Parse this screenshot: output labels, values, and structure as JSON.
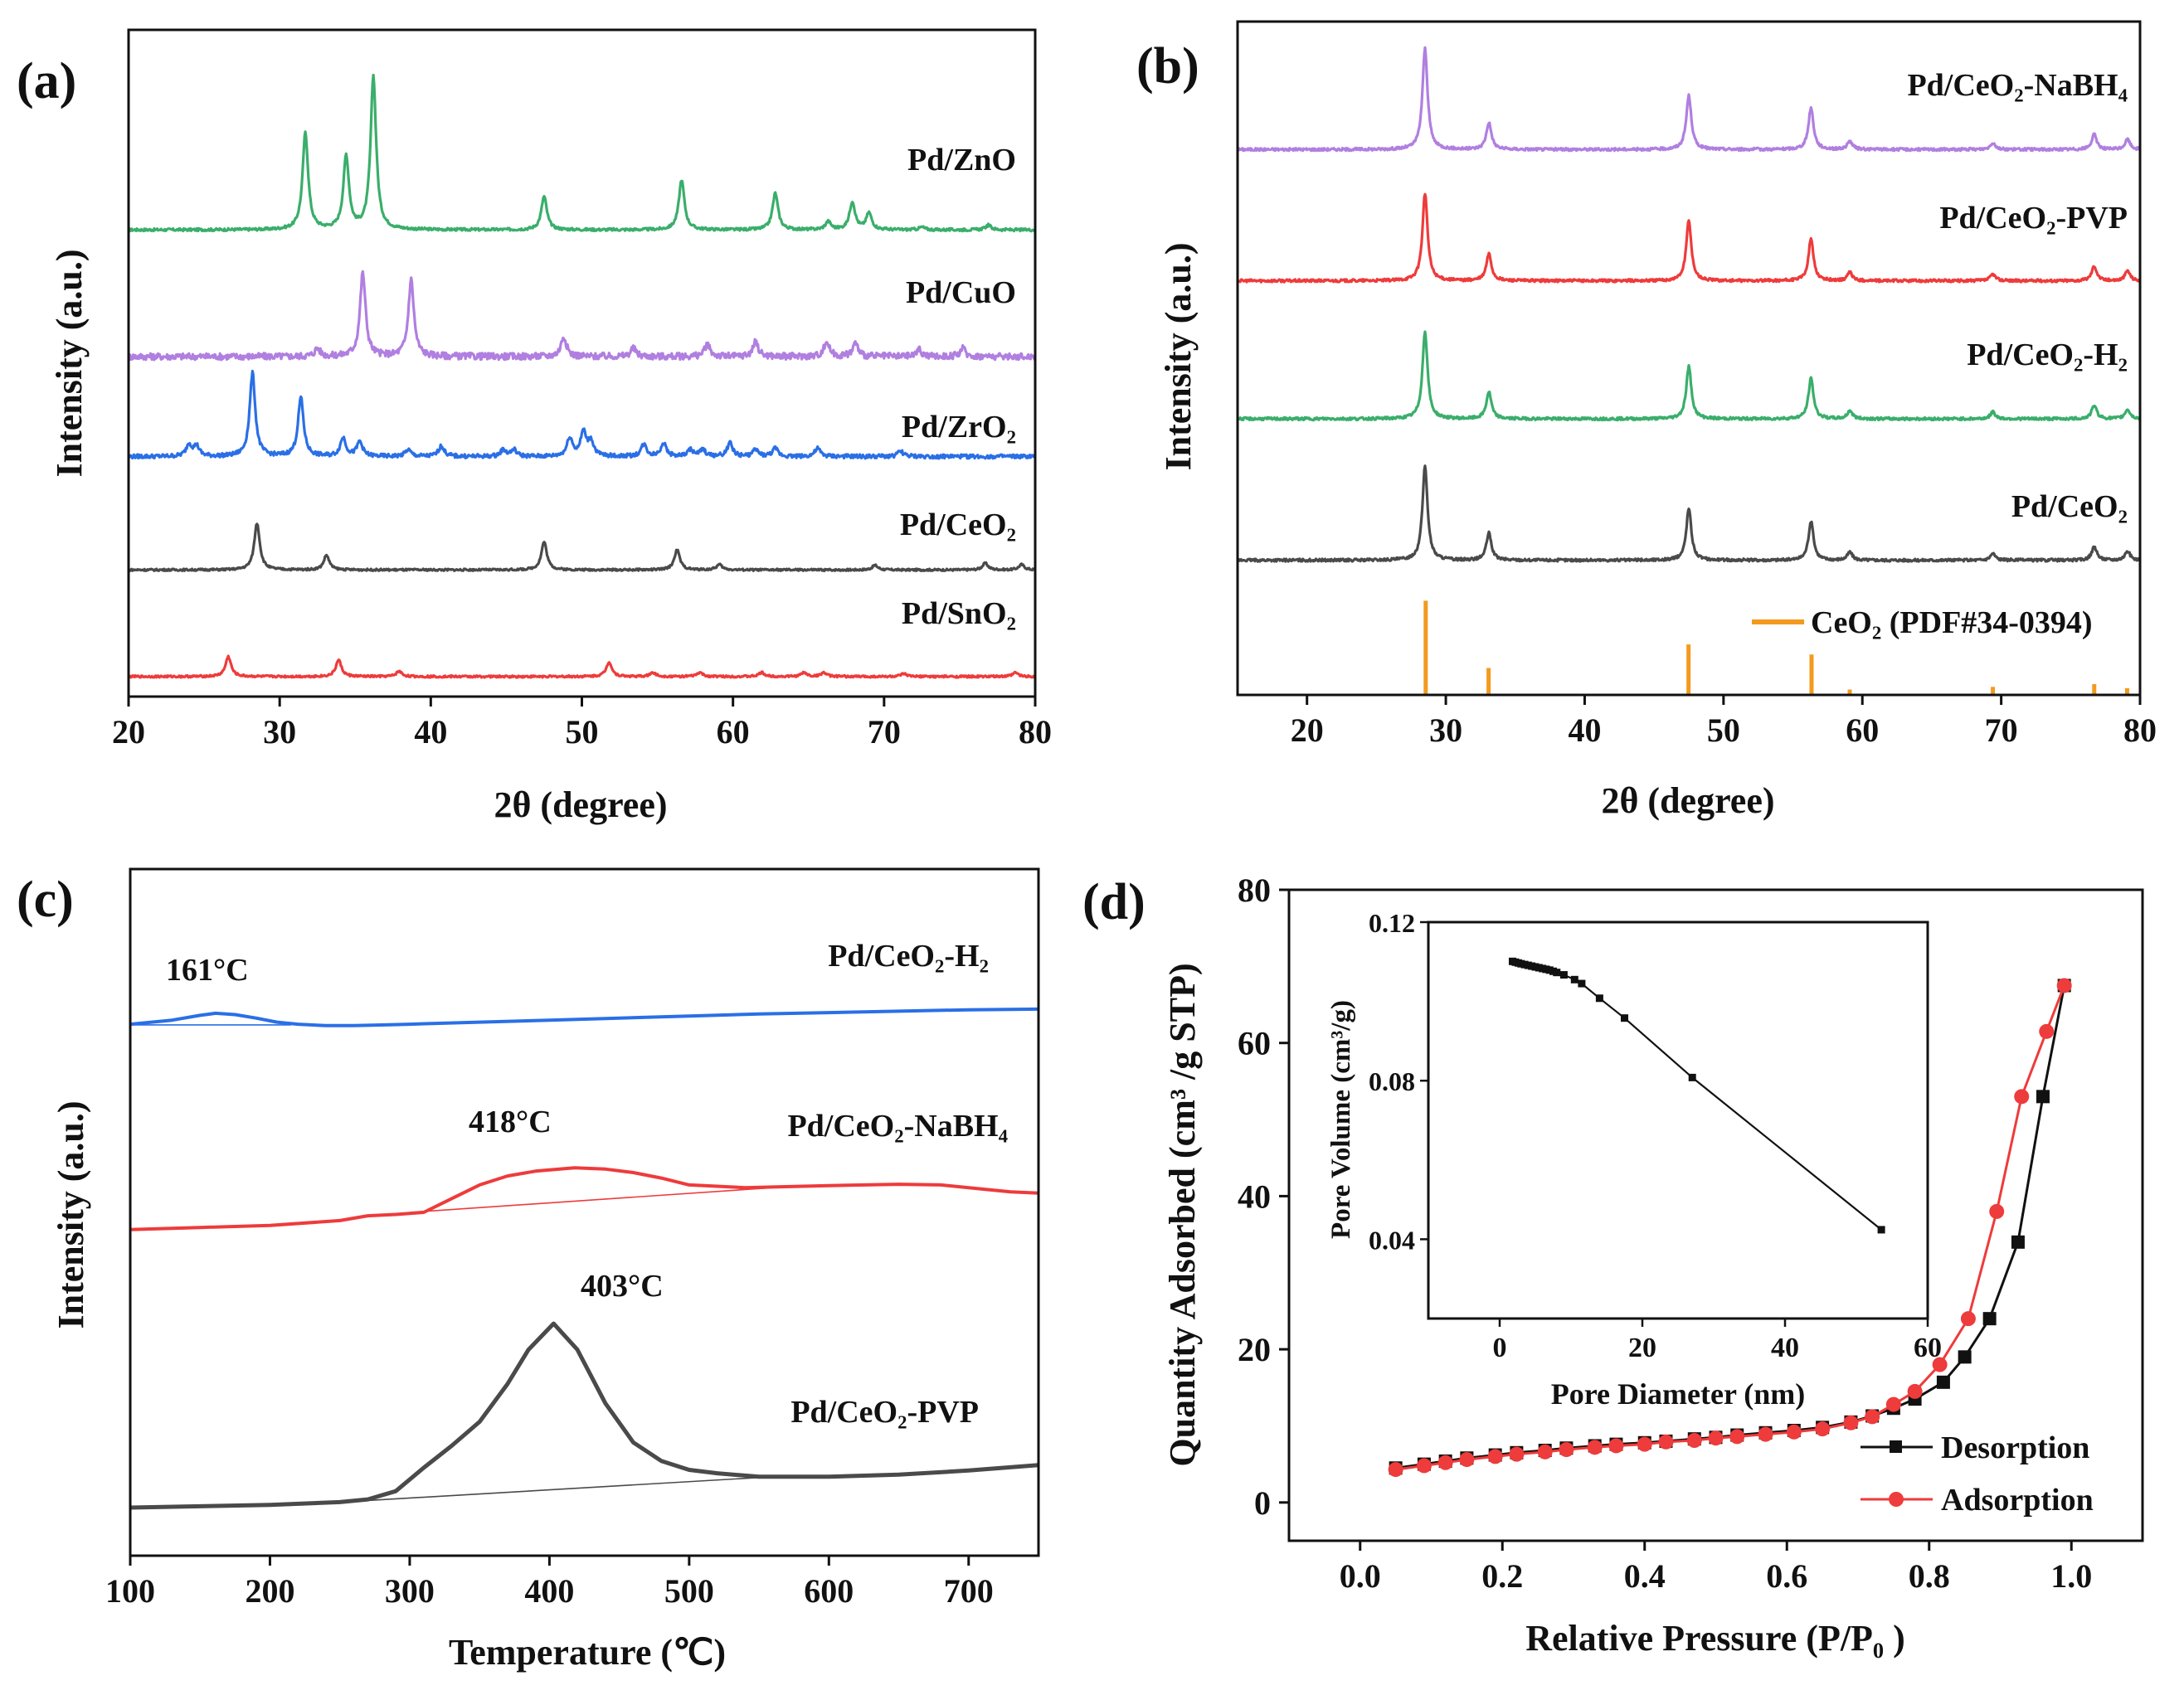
{
  "colors": {
    "green": "#3aae6b",
    "purple": "#b07fe0",
    "blue": "#2a6fe6",
    "gray": "#4a4a4a",
    "red": "#ee3b3b",
    "orange": "#f39a1e",
    "black": "#111111"
  },
  "chart_data": [
    {
      "id": "a",
      "type": "line",
      "panel_label": "(a)",
      "xlabel": "2θ (degree)",
      "ylabel": "Intensity (a.u.)",
      "xlim": [
        20,
        80
      ],
      "xticks": [
        "20",
        "30",
        "40",
        "50",
        "60",
        "70",
        "80"
      ],
      "yticks": [],
      "series": [
        {
          "name": "Pd/ZnO",
          "color": "#3aae6b",
          "offset": 0.7,
          "noise": 0.002,
          "peaks": [
            [
              31.7,
              0.145
            ],
            [
              34.4,
              0.11
            ],
            [
              36.2,
              0.23
            ],
            [
              47.5,
              0.05
            ],
            [
              56.6,
              0.075
            ],
            [
              62.8,
              0.055
            ],
            [
              66.3,
              0.012
            ],
            [
              67.9,
              0.042
            ],
            [
              69.0,
              0.025
            ],
            [
              72.5,
              0.004
            ],
            [
              76.9,
              0.007
            ]
          ]
        },
        {
          "name": "Pd/CuO",
          "color": "#b07fe0",
          "offset": 0.51,
          "noise": 0.005,
          "peaks": [
            [
              32.5,
              0.012
            ],
            [
              35.5,
              0.125
            ],
            [
              38.7,
              0.115
            ],
            [
              48.8,
              0.03
            ],
            [
              53.4,
              0.012
            ],
            [
              58.3,
              0.018
            ],
            [
              61.5,
              0.022
            ],
            [
              66.2,
              0.022
            ],
            [
              68.1,
              0.02
            ],
            [
              72.3,
              0.01
            ],
            [
              75.2,
              0.012
            ]
          ]
        },
        {
          "name": "Pd/ZrO₂",
          "color": "#2a6fe6",
          "offset": 0.36,
          "noise": 0.003,
          "peaks": [
            [
              24.0,
              0.018
            ],
            [
              24.5,
              0.015
            ],
            [
              28.2,
              0.125
            ],
            [
              31.4,
              0.088
            ],
            [
              34.2,
              0.028
            ],
            [
              35.3,
              0.022
            ],
            [
              38.5,
              0.01
            ],
            [
              40.7,
              0.016
            ],
            [
              44.8,
              0.01
            ],
            [
              45.5,
              0.01
            ],
            [
              49.2,
              0.028
            ],
            [
              50.1,
              0.036
            ],
            [
              50.6,
              0.022
            ],
            [
              54.1,
              0.018
            ],
            [
              55.4,
              0.02
            ],
            [
              57.2,
              0.01
            ],
            [
              58.0,
              0.01
            ],
            [
              59.8,
              0.02
            ],
            [
              61.5,
              0.01
            ],
            [
              62.8,
              0.012
            ],
            [
              65.6,
              0.012
            ],
            [
              71.1,
              0.008
            ]
          ]
        },
        {
          "name": "Pd/CeO₂",
          "color": "#4a4a4a",
          "offset": 0.19,
          "noise": 0.0015,
          "peaks": [
            [
              28.5,
              0.07
            ],
            [
              33.1,
              0.022
            ],
            [
              47.5,
              0.042
            ],
            [
              56.3,
              0.03
            ],
            [
              59.1,
              0.008
            ],
            [
              69.4,
              0.007
            ],
            [
              76.7,
              0.01
            ],
            [
              79.1,
              0.008
            ]
          ]
        },
        {
          "name": "Pd/SnO₂",
          "color": "#ee3b3b",
          "offset": 0.03,
          "noise": 0.0015,
          "peaks": [
            [
              26.6,
              0.03
            ],
            [
              33.9,
              0.025
            ],
            [
              37.9,
              0.008
            ],
            [
              51.8,
              0.022
            ],
            [
              54.7,
              0.006
            ],
            [
              57.8,
              0.006
            ],
            [
              61.9,
              0.006
            ],
            [
              64.7,
              0.006
            ],
            [
              66.0,
              0.006
            ],
            [
              71.3,
              0.004
            ],
            [
              78.7,
              0.006
            ]
          ]
        }
      ]
    },
    {
      "id": "b",
      "type": "line",
      "panel_label": "(b)",
      "xlabel": "2θ (degree)",
      "ylabel": "Intensity (a.u.)",
      "xlim": [
        15,
        80
      ],
      "xticks": [
        "20",
        "30",
        "40",
        "50",
        "60",
        "70",
        "80"
      ],
      "yticks": [],
      "series": [
        {
          "name": "Pd/CeO₂-NaBH₄",
          "color": "#b07fe0",
          "offset": 0.81,
          "noise": 0.002,
          "peaks": [
            [
              28.5,
              0.15
            ],
            [
              33.1,
              0.04
            ],
            [
              47.5,
              0.08
            ],
            [
              56.3,
              0.062
            ],
            [
              59.1,
              0.012
            ],
            [
              69.4,
              0.01
            ],
            [
              76.7,
              0.022
            ],
            [
              79.1,
              0.015
            ]
          ]
        },
        {
          "name": "Pd/CeO₂-PVP",
          "color": "#ee3b3b",
          "offset": 0.615,
          "noise": 0.002,
          "peaks": [
            [
              28.5,
              0.13
            ],
            [
              33.1,
              0.04
            ],
            [
              47.5,
              0.09
            ],
            [
              56.3,
              0.062
            ],
            [
              59.1,
              0.012
            ],
            [
              69.4,
              0.01
            ],
            [
              76.7,
              0.022
            ],
            [
              79.1,
              0.015
            ]
          ]
        },
        {
          "name": "Pd/CeO₂-H₂",
          "color": "#3aae6b",
          "offset": 0.41,
          "noise": 0.002,
          "peaks": [
            [
              28.5,
              0.13
            ],
            [
              33.1,
              0.04
            ],
            [
              47.5,
              0.078
            ],
            [
              56.3,
              0.06
            ],
            [
              59.1,
              0.012
            ],
            [
              69.4,
              0.01
            ],
            [
              76.7,
              0.02
            ],
            [
              79.1,
              0.014
            ]
          ]
        },
        {
          "name": "Pd/CeO₂",
          "color": "#4a4a4a",
          "offset": 0.2,
          "noise": 0.002,
          "peaks": [
            [
              28.5,
              0.14
            ],
            [
              33.1,
              0.04
            ],
            [
              47.5,
              0.077
            ],
            [
              56.3,
              0.058
            ],
            [
              59.1,
              0.012
            ],
            [
              69.4,
              0.01
            ],
            [
              76.7,
              0.02
            ],
            [
              79.1,
              0.014
            ]
          ]
        }
      ],
      "reference": {
        "name": "CeO₂ (PDF#34-0394)",
        "color": "#f39a1e",
        "lines": [
          [
            28.55,
            0.14
          ],
          [
            33.08,
            0.04
          ],
          [
            47.48,
            0.075
          ],
          [
            56.34,
            0.06
          ],
          [
            59.09,
            0.008
          ],
          [
            69.4,
            0.012
          ],
          [
            76.7,
            0.016
          ],
          [
            79.07,
            0.01
          ]
        ]
      }
    },
    {
      "id": "c",
      "type": "line",
      "panel_label": "(c)",
      "xlabel": "Temperature (℃)",
      "ylabel": "Intensity (a.u.)",
      "xlim": [
        100,
        750
      ],
      "xticks": [
        "100",
        "200",
        "300",
        "400",
        "500",
        "600",
        "700"
      ],
      "yticks": [],
      "series": [
        {
          "name": "Pd/CeO₂-H₂",
          "color": "#2a6fe6",
          "label": "161°C",
          "x": [
            100,
            130,
            150,
            161,
            175,
            190,
            205,
            220,
            240,
            260,
            280,
            300,
            350,
            400,
            450,
            500,
            550,
            600,
            650,
            700,
            750
          ],
          "y": [
            0.774,
            0.78,
            0.787,
            0.79,
            0.788,
            0.783,
            0.777,
            0.774,
            0.772,
            0.772,
            0.773,
            0.774,
            0.777,
            0.78,
            0.783,
            0.786,
            0.789,
            0.791,
            0.793,
            0.795,
            0.796
          ],
          "baseline_x": [
            100,
            215
          ],
          "baseline_y": [
            0.773,
            0.773
          ]
        },
        {
          "name": "Pd/CeO₂-NaBH₄",
          "color": "#ee3b3b",
          "label": "418°C",
          "x": [
            100,
            150,
            200,
            250,
            270,
            290,
            310,
            330,
            350,
            370,
            390,
            418,
            440,
            460,
            480,
            500,
            520,
            540,
            560,
            600,
            650,
            680,
            700,
            730,
            750
          ],
          "y": [
            0.475,
            0.478,
            0.481,
            0.488,
            0.495,
            0.497,
            0.5,
            0.52,
            0.54,
            0.553,
            0.56,
            0.565,
            0.563,
            0.558,
            0.55,
            0.54,
            0.538,
            0.536,
            0.537,
            0.539,
            0.541,
            0.54,
            0.536,
            0.53,
            0.528
          ],
          "baseline_x": [
            300,
            560
          ],
          "baseline_y": [
            0.5,
            0.536
          ]
        },
        {
          "name": "Pd/CeO₂-PVP",
          "color": "#4a4a4a",
          "label": "403°C",
          "x": [
            100,
            150,
            200,
            250,
            270,
            290,
            310,
            330,
            350,
            370,
            385,
            403,
            420,
            440,
            460,
            480,
            500,
            520,
            550,
            600,
            650,
            700,
            750
          ],
          "y": [
            0.07,
            0.072,
            0.074,
            0.078,
            0.082,
            0.094,
            0.128,
            0.16,
            0.195,
            0.25,
            0.3,
            0.338,
            0.3,
            0.222,
            0.165,
            0.138,
            0.125,
            0.12,
            0.115,
            0.115,
            0.118,
            0.124,
            0.132
          ],
          "baseline_x": [
            250,
            560
          ],
          "baseline_y": [
            0.078,
            0.115
          ]
        }
      ]
    },
    {
      "id": "d",
      "type": "line",
      "panel_label": "(d)",
      "xlabel": "Relative Pressure (P/P₀ )",
      "ylabel": "Quantity Adsorbed (cm³ /g STP)",
      "xlim": [
        -0.1,
        1.1
      ],
      "ylim": [
        -5,
        80
      ],
      "xticks": [
        "0.0",
        "0.2",
        "0.4",
        "0.6",
        "0.8",
        "1.0"
      ],
      "yticks": [
        "0",
        "20",
        "40",
        "60",
        "80"
      ],
      "series": [
        {
          "name": "Desorption",
          "color": "#111111",
          "marker": "square",
          "x": [
            0.05,
            0.09,
            0.12,
            0.15,
            0.19,
            0.22,
            0.26,
            0.29,
            0.33,
            0.36,
            0.4,
            0.43,
            0.47,
            0.5,
            0.53,
            0.57,
            0.61,
            0.65,
            0.69,
            0.72,
            0.75,
            0.78,
            0.82,
            0.85,
            0.885,
            0.925,
            0.96,
            0.99
          ],
          "y": [
            4.5,
            5.0,
            5.4,
            5.8,
            6.2,
            6.5,
            6.8,
            7.1,
            7.4,
            7.6,
            7.8,
            8.0,
            8.3,
            8.5,
            8.8,
            9.1,
            9.4,
            9.8,
            10.5,
            11.3,
            12.3,
            13.5,
            15.7,
            19.0,
            24.0,
            34.0,
            53.0,
            67.5
          ]
        },
        {
          "name": "Adsorption",
          "color": "#ee3b3b",
          "marker": "circle",
          "x": [
            0.05,
            0.09,
            0.12,
            0.15,
            0.19,
            0.22,
            0.26,
            0.29,
            0.33,
            0.36,
            0.4,
            0.43,
            0.47,
            0.5,
            0.53,
            0.57,
            0.61,
            0.65,
            0.69,
            0.72,
            0.75,
            0.78,
            0.815,
            0.855,
            0.895,
            0.93,
            0.965,
            0.99
          ],
          "y": [
            4.3,
            4.8,
            5.2,
            5.6,
            6.0,
            6.3,
            6.6,
            6.9,
            7.2,
            7.4,
            7.6,
            7.9,
            8.1,
            8.4,
            8.6,
            8.9,
            9.2,
            9.6,
            10.4,
            11.2,
            12.8,
            14.5,
            18.0,
            24.0,
            38.0,
            53.0,
            61.5,
            67.5
          ]
        }
      ],
      "inset": {
        "xlabel": "Pore Diameter (nm)",
        "ylabel": "Pore Volume (cm³/g)",
        "xlim": [
          -10,
          60
        ],
        "ylim": [
          0.02,
          0.12
        ],
        "xticks": [
          "0",
          "20",
          "40",
          "60"
        ],
        "yticks": [
          "0.04",
          "0.08",
          "0.12"
        ],
        "x": [
          1.8,
          2.2,
          2.6,
          3.0,
          3.5,
          4.0,
          4.5,
          5.0,
          5.5,
          6.0,
          6.5,
          7.0,
          7.5,
          8.0,
          9.0,
          10.5,
          11.5,
          14.0,
          17.5,
          27.0,
          53.5
        ],
        "y": [
          0.1101,
          0.1099,
          0.1097,
          0.1095,
          0.1093,
          0.1091,
          0.1089,
          0.1087,
          0.1085,
          0.1083,
          0.1081,
          0.1079,
          0.1076,
          0.1073,
          0.1067,
          0.1055,
          0.1045,
          0.1008,
          0.0958,
          0.0808,
          0.0424
        ]
      }
    }
  ]
}
